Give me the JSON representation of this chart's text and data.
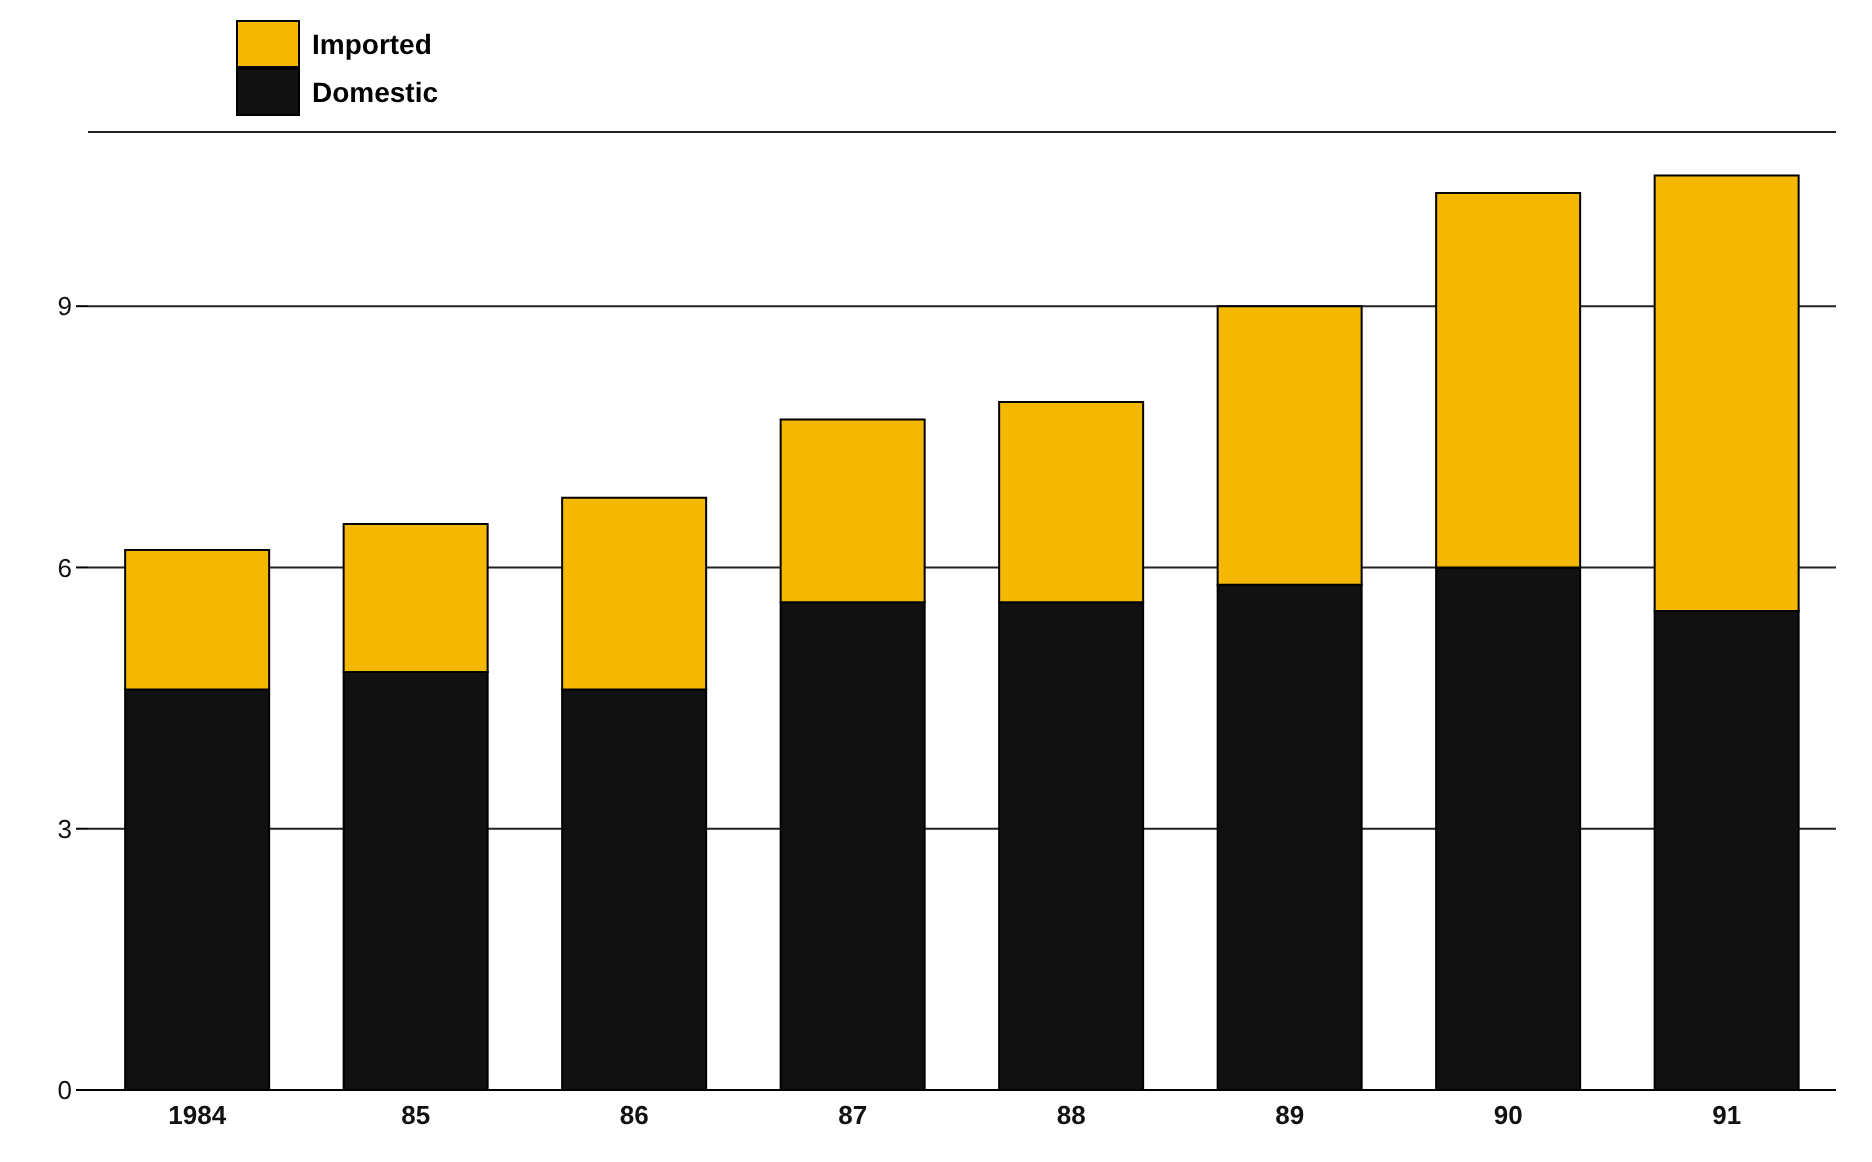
{
  "chart_data": {
    "type": "bar",
    "stacked": true,
    "categories": [
      "1984",
      "85",
      "86",
      "87",
      "88",
      "89",
      "90",
      "91"
    ],
    "series": [
      {
        "name": "Domestic",
        "color": "#111111",
        "values": [
          4.6,
          4.8,
          4.6,
          5.6,
          5.6,
          5.8,
          6.0,
          5.5
        ]
      },
      {
        "name": "Imported",
        "color": "#f5b800",
        "values": [
          1.6,
          1.7,
          2.2,
          2.1,
          2.3,
          3.2,
          4.3,
          5.0
        ]
      }
    ],
    "ylim": [
      0,
      11
    ],
    "yticks": [
      0,
      3,
      6,
      9
    ],
    "grid": "y",
    "legend": "top left"
  }
}
